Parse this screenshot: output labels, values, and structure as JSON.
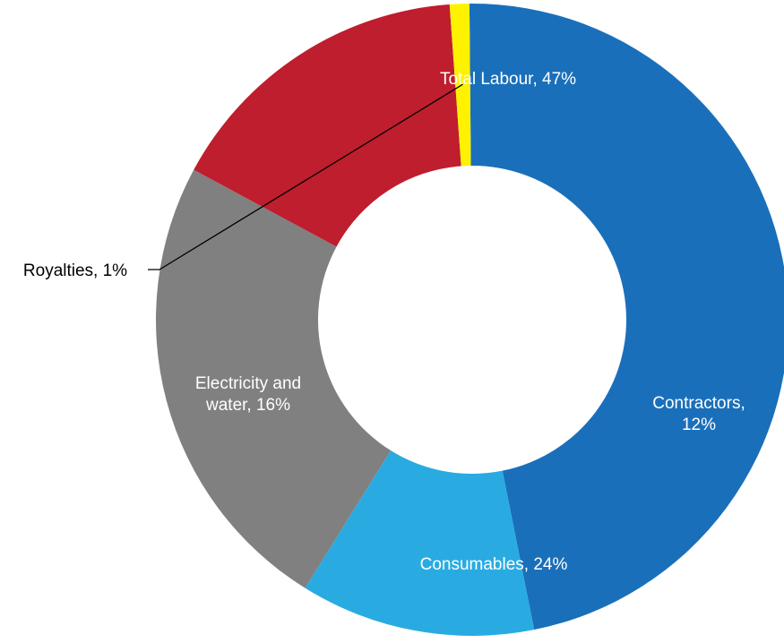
{
  "chart_data": {
    "type": "pie",
    "subtype": "donut",
    "title": "",
    "slices": [
      {
        "name": "Total Labour",
        "value": 47,
        "label_lines": [
          "Total Labour, 47%"
        ],
        "color": "#1a6fba",
        "label_color": "#ffffff"
      },
      {
        "name": "Contractors",
        "value": 12,
        "label_lines": [
          "Contractors,",
          "12%"
        ],
        "color": "#29abe2",
        "label_color": "#ffffff"
      },
      {
        "name": "Consumables",
        "value": 24,
        "label_lines": [
          "Consumables, 24%"
        ],
        "color": "#808080",
        "label_color": "#ffffff"
      },
      {
        "name": "Electricity and water",
        "value": 16,
        "label_lines": [
          "Electricity and",
          "water, 16%"
        ],
        "color": "#be1e2d",
        "label_color": "#ffffff"
      },
      {
        "name": "Royalties",
        "value": 1,
        "label_lines": [
          "Royalties, 1%"
        ],
        "color": "#fff200",
        "label_color": "#000000",
        "label_outside": true
      }
    ],
    "legend": "none"
  }
}
